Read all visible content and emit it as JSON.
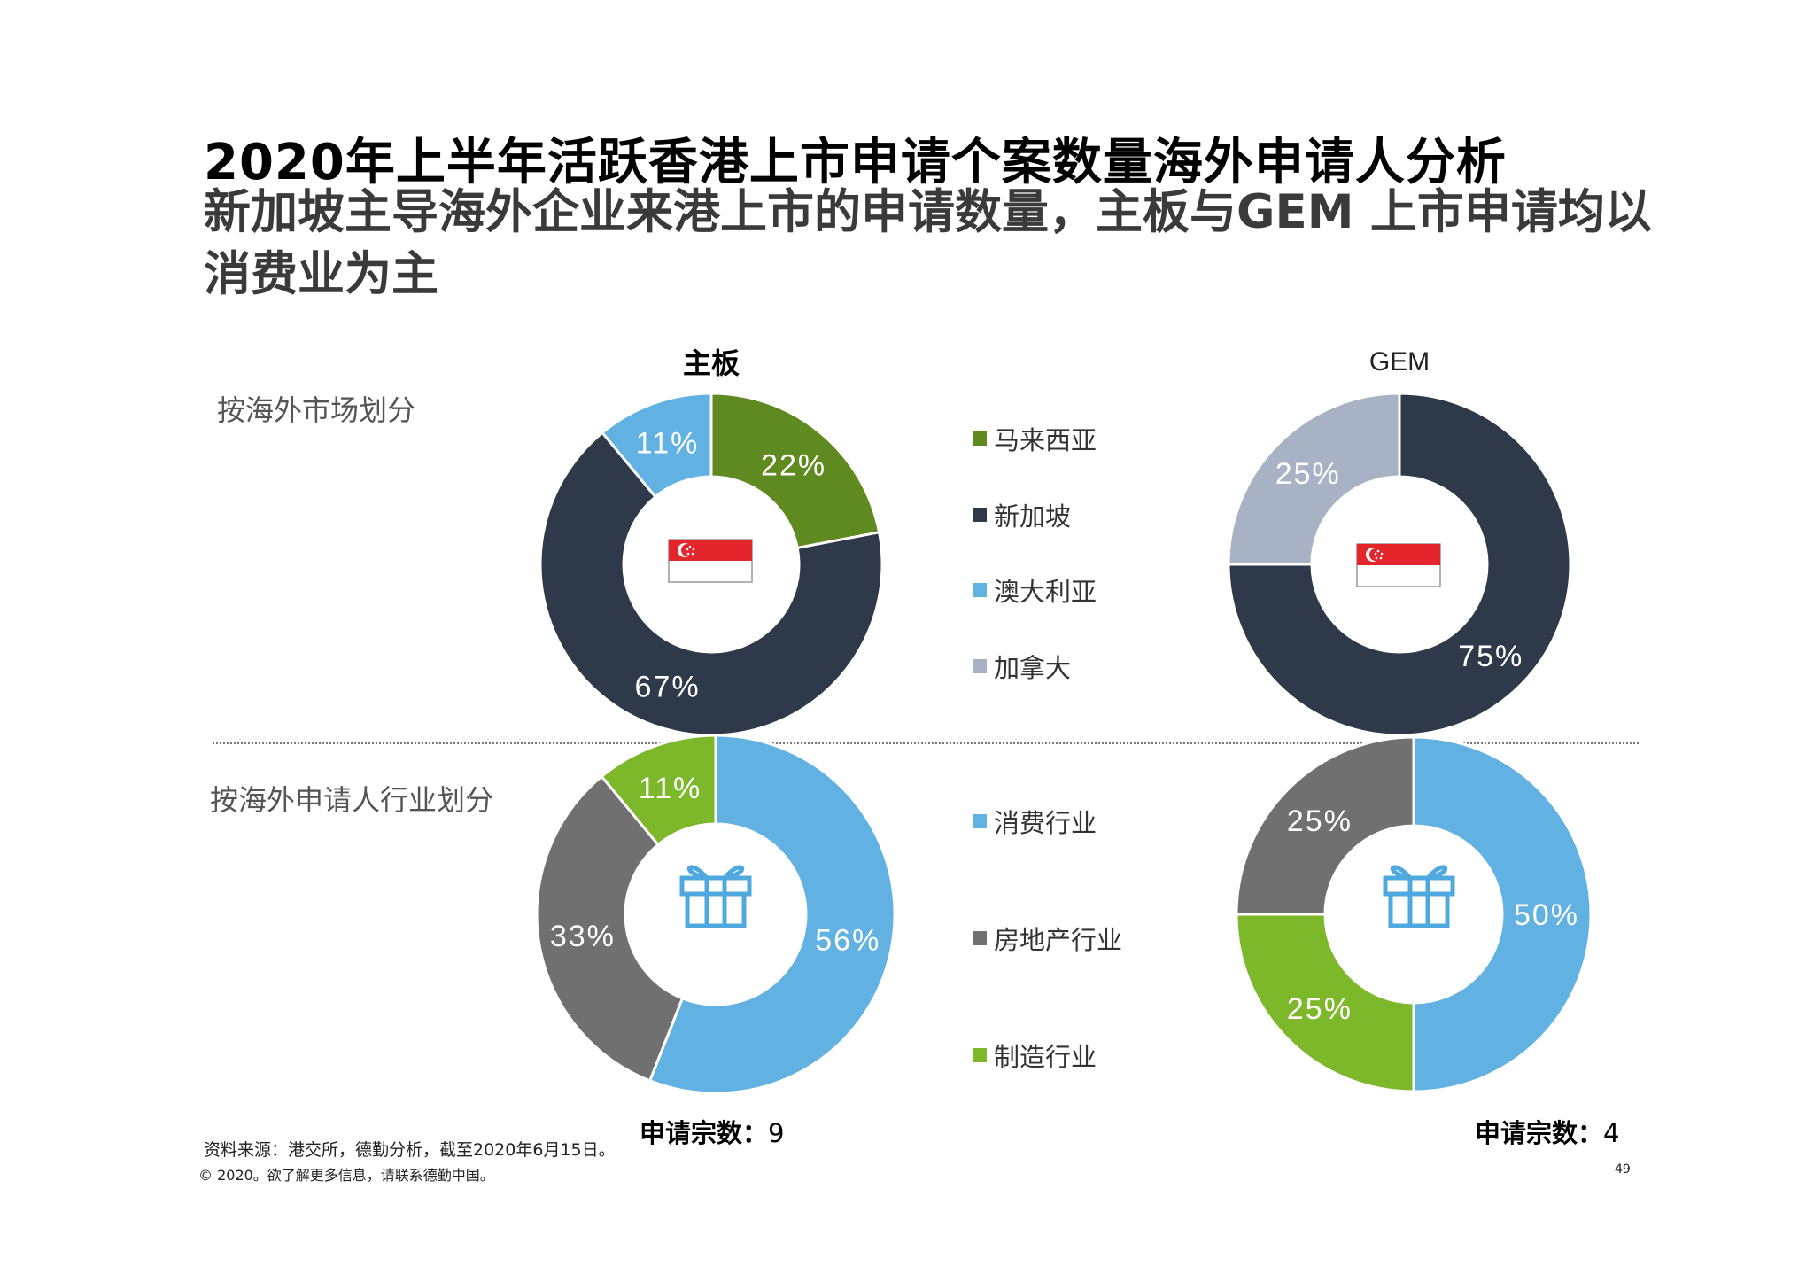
{
  "title": "2020年上半年活跃香港上市申请个案数量海外申请人分析",
  "subtitle": "新加坡主导海外企业来港上市的申请数量，主板与GEM 上市申请均以消费业为主",
  "sections": {
    "market": "按海外市场划分",
    "industry": "按海外申请人行业划分"
  },
  "legend_market": [
    {
      "label": "马来西亚",
      "color": "#5e8a1f"
    },
    {
      "label": "新加坡",
      "color": "#2e3a4a"
    },
    {
      "label": "澳大利亚",
      "color": "#61b1e2"
    },
    {
      "label": "加拿大",
      "color": "#a7b3c5"
    }
  ],
  "legend_industry": [
    {
      "label": "消费行业",
      "color": "#61b1e2"
    },
    {
      "label": "房地产行业",
      "color": "#707070"
    },
    {
      "label": "制造行业",
      "color": "#7cb82a"
    }
  ],
  "counts": {
    "label": "申请宗数：",
    "main": "9",
    "gem": "4"
  },
  "source": "资料来源：港交所，德勤分析，截至2020年6月15日。",
  "copyright": "© 2020。欲了解更多信息，请联系德勤中国。",
  "page_number": "49",
  "chart_data": [
    {
      "type": "pie",
      "title": "主板",
      "categories": [
        "马来西亚",
        "新加坡",
        "澳大利亚"
      ],
      "values": [
        22,
        67,
        11
      ],
      "labels": [
        "22%",
        "67%",
        "11%"
      ],
      "colors": [
        "#5e8a1f",
        "#2e3a4a",
        "#61b1e2"
      ],
      "center_icon": "singapore-flag-icon"
    },
    {
      "type": "pie",
      "title": "GEM",
      "categories": [
        "新加坡",
        "加拿大"
      ],
      "values": [
        75,
        25
      ],
      "labels": [
        "75%",
        "25%"
      ],
      "colors": [
        "#2e3a4a",
        "#a7b3c5"
      ],
      "center_icon": "singapore-flag-icon"
    },
    {
      "type": "pie",
      "title": "",
      "categories": [
        "消费行业",
        "房地产行业",
        "制造行业"
      ],
      "values": [
        56,
        33,
        11
      ],
      "labels": [
        "56%",
        "33%",
        "11%"
      ],
      "colors": [
        "#61b1e2",
        "#707070",
        "#7cb82a"
      ],
      "center_icon": "gift-icon"
    },
    {
      "type": "pie",
      "title": "",
      "categories": [
        "消费行业",
        "制造行业",
        "房地产行业"
      ],
      "values": [
        50,
        25,
        25
      ],
      "labels": [
        "50%",
        "25%",
        "25%"
      ],
      "colors": [
        "#61b1e2",
        "#7cb82a",
        "#707070"
      ],
      "center_icon": "gift-icon"
    }
  ]
}
